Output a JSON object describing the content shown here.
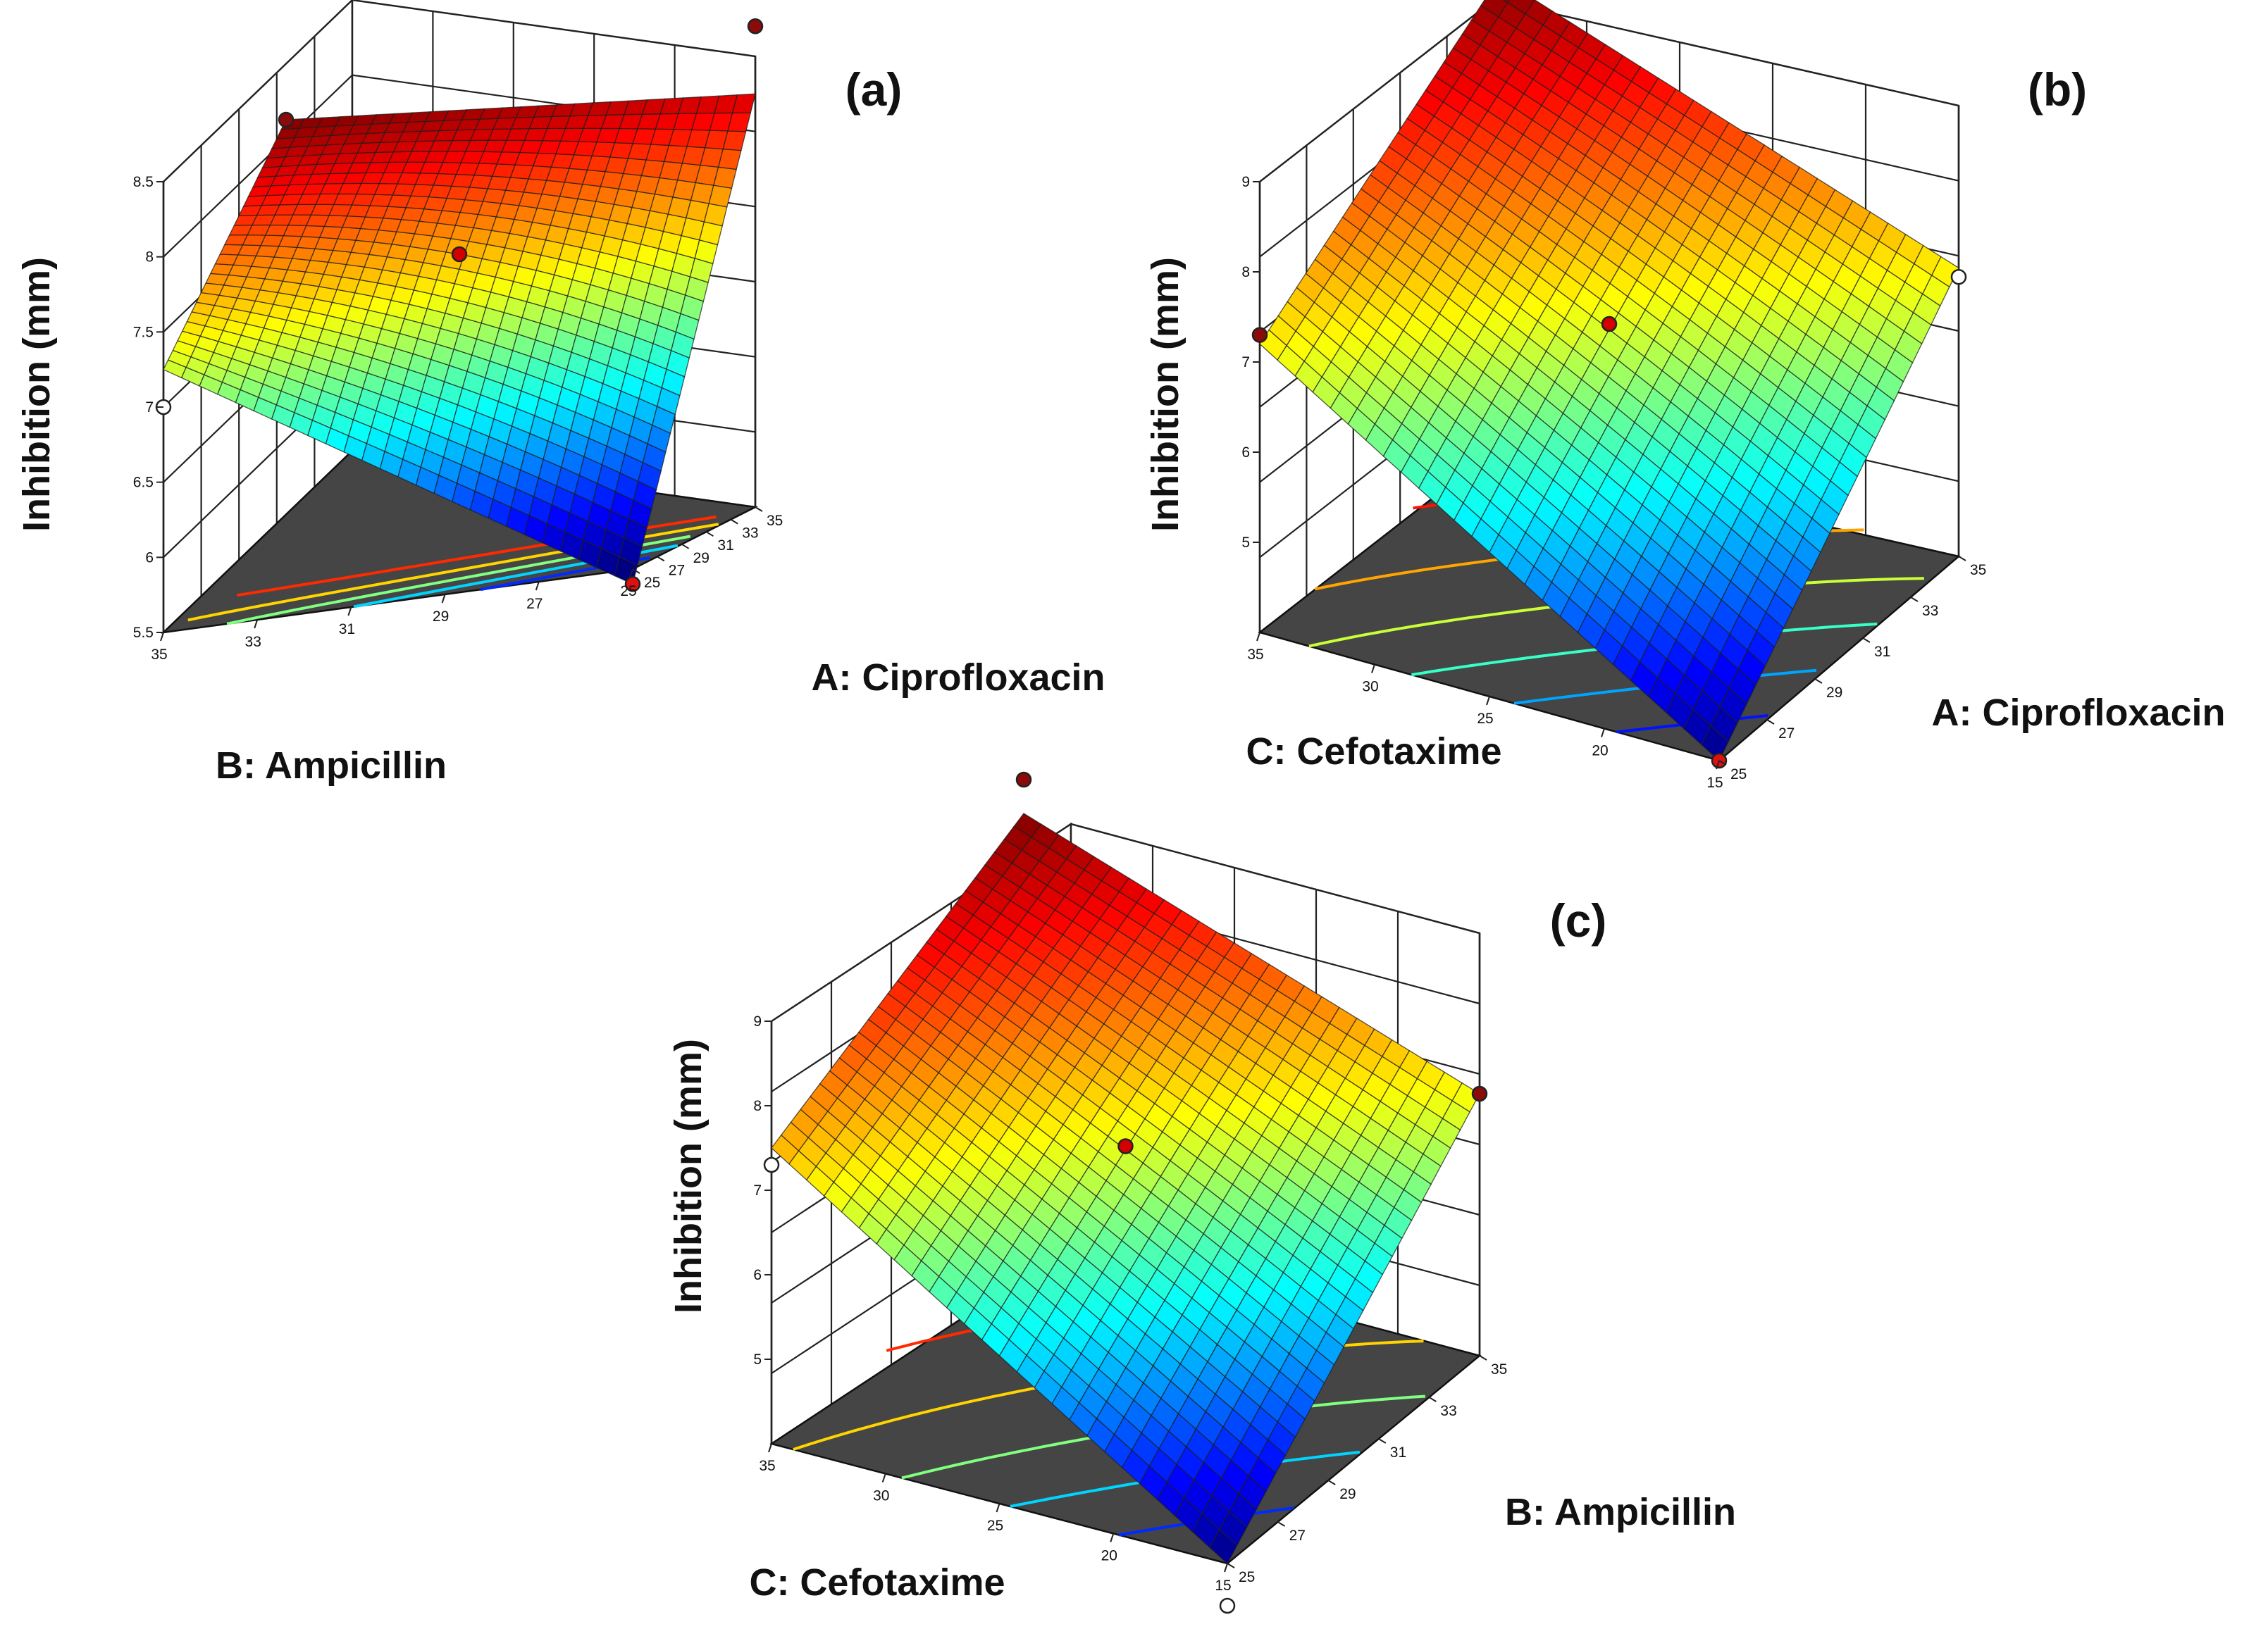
{
  "chart_data": [
    {
      "id": "a",
      "type": "surface3d",
      "panel_label": "(a)",
      "zlabel": "Inhibition (mm)",
      "x_axis": {
        "label": "A: Ciprofloxacin",
        "range": [
          25,
          35
        ],
        "ticks": [
          "25",
          "27",
          "29",
          "31",
          "33",
          "35"
        ]
      },
      "y_axis": {
        "label": "B: Ampicillin",
        "range": [
          25,
          35
        ],
        "ticks": [
          "25",
          "27",
          "29",
          "31",
          "33",
          "35"
        ]
      },
      "z_axis": {
        "range": [
          5.5,
          8.5
        ],
        "ticks": [
          "5.5",
          "6",
          "6.5",
          "7",
          "7.5",
          "8",
          "8.5"
        ]
      },
      "corner_values": {
        "x_low_y_low": 5.4,
        "x_high_y_low": 8.25,
        "x_low_y_high": 7.25,
        "x_high_y_high": 8.5
      },
      "center_point": 7.6,
      "design_points": [
        {
          "x": 25,
          "y": 35,
          "z": 7.0,
          "position": "below surface"
        },
        {
          "x": 35,
          "y": 35,
          "z": 8.5,
          "position": "above surface"
        },
        {
          "x": 35,
          "y": 25,
          "z": 8.7,
          "position": "above surface"
        },
        {
          "x": 25,
          "y": 25,
          "z": 5.4,
          "position": "above surface"
        },
        {
          "x": 30,
          "y": 30,
          "z": 7.6,
          "position": "above surface"
        }
      ],
      "contour_count": 5
    },
    {
      "id": "b",
      "type": "surface3d",
      "panel_label": "(b)",
      "zlabel": "Inhibition (mm)",
      "x_axis": {
        "label": "A: Ciprofloxacin",
        "range": [
          25,
          35
        ],
        "ticks": [
          "25",
          "27",
          "29",
          "31",
          "33",
          "35"
        ]
      },
      "y_axis": {
        "label": "C: Cefotaxime",
        "range": [
          15,
          35
        ],
        "ticks": [
          "15",
          "20",
          "25",
          "30",
          "35"
        ]
      },
      "z_axis": {
        "range": [
          4,
          9
        ],
        "ticks": [
          "5",
          "6",
          "7",
          "8",
          "9"
        ]
      },
      "corner_values": {
        "x_low_y_low": 4.0,
        "x_high_y_low": 7.2,
        "x_low_y_high": 7.2,
        "x_high_y_high": 9.0
      },
      "center_point": 7.0,
      "design_points": [
        {
          "x": 25,
          "y": 35,
          "z": 7.3,
          "position": "above surface"
        },
        {
          "x": 35,
          "y": 15,
          "z": 7.1,
          "position": "below surface"
        },
        {
          "x": 25,
          "y": 15,
          "z": 4.0,
          "position": "above surface"
        },
        {
          "x": 30,
          "y": 25,
          "z": 7.0,
          "position": "above surface"
        }
      ],
      "contour_count": 6
    },
    {
      "id": "c",
      "type": "surface3d",
      "panel_label": "(c)",
      "zlabel": "Inhibition (mm)",
      "x_axis": {
        "label": "B: Ampicillin",
        "range": [
          25,
          35
        ],
        "ticks": [
          "25",
          "27",
          "29",
          "31",
          "33",
          "35"
        ]
      },
      "y_axis": {
        "label": "C: Cefotaxime",
        "range": [
          15,
          35
        ],
        "ticks": [
          "15",
          "20",
          "25",
          "30",
          "35"
        ]
      },
      "z_axis": {
        "range": [
          4,
          9
        ],
        "ticks": [
          "5",
          "6",
          "7",
          "8",
          "9"
        ]
      },
      "corner_values": {
        "x_low_y_low": 4.0,
        "x_high_y_low": 7.1,
        "x_low_y_high": 7.5,
        "x_high_y_high": 9.0
      },
      "center_point": 7.0,
      "design_points": [
        {
          "x": 25,
          "y": 35,
          "z": 7.3,
          "position": "below surface"
        },
        {
          "x": 35,
          "y": 35,
          "z": 9.4,
          "position": "above surface"
        },
        {
          "x": 35,
          "y": 15,
          "z": 7.1,
          "position": "above surface"
        },
        {
          "x": 25,
          "y": 15,
          "z": 3.5,
          "position": "below surface"
        },
        {
          "x": 30,
          "y": 25,
          "z": 7.0,
          "position": "above surface"
        }
      ],
      "contour_count": 5
    }
  ]
}
